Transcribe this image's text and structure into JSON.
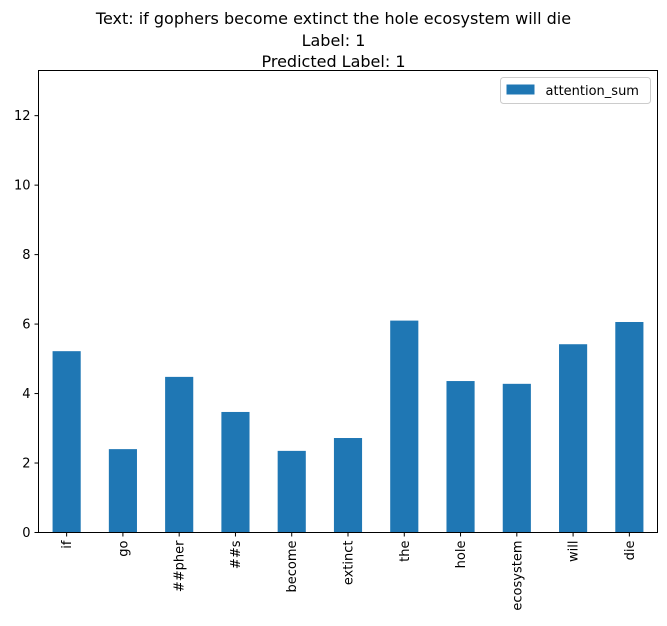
{
  "chart_data": {
    "type": "bar",
    "title_lines": [
      "Text: if gophers become extinct the hole ecosystem will die",
      "Label: 1",
      "Predicted Label: 1"
    ],
    "categories": [
      "if",
      "go",
      "##pher",
      "##s",
      "become",
      "extinct",
      "the",
      "hole",
      "ecosystem",
      "will",
      "die"
    ],
    "series": [
      {
        "name": "attention_sum",
        "values": [
          5.22,
          2.4,
          4.48,
          3.47,
          2.35,
          2.72,
          6.1,
          4.36,
          4.28,
          5.42,
          6.06
        ],
        "color": "#1f77b4"
      }
    ],
    "ylim": [
      0,
      13.3
    ],
    "yticks": [
      0,
      2,
      4,
      6,
      8,
      10,
      12
    ],
    "xlabel": "",
    "ylabel": "",
    "grid": false,
    "legend_position": "top-right"
  }
}
